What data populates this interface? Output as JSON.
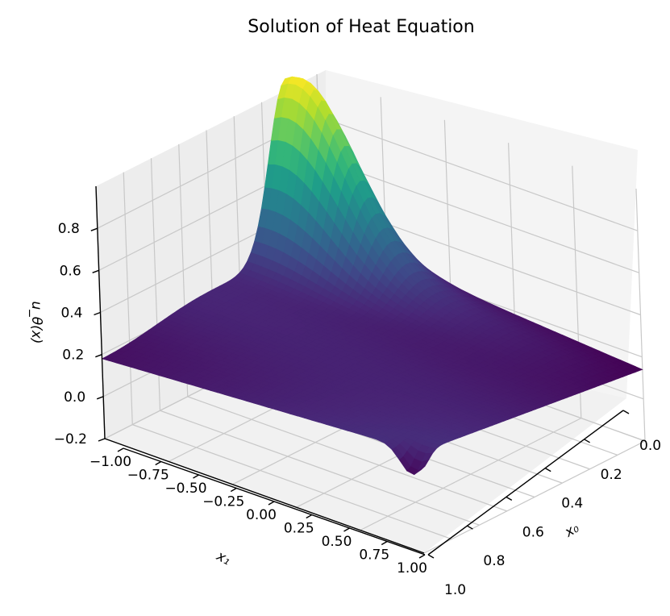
{
  "chart_data": {
    "type": "surface",
    "title": "Solution of Heat Equation",
    "xlabel": "x₀",
    "ylabel": "x₁",
    "zlabel": "u_θ(x)",
    "x_ticks": [
      "0.0",
      "0.2",
      "0.4",
      "0.6",
      "0.8",
      "1.0"
    ],
    "x_range": [
      0,
      1
    ],
    "y_ticks": [
      "−1.00",
      "−0.75",
      "−0.50",
      "−0.25",
      "0.00",
      "0.25",
      "0.50",
      "0.75",
      "1.00"
    ],
    "y_range": [
      -1,
      1
    ],
    "z_ticks": [
      "−0.2",
      "0.0",
      "0.2",
      "0.4",
      "0.6",
      "0.8"
    ],
    "z_range": [
      -0.2,
      1.0
    ],
    "colormap": "viridis",
    "grid": true
  }
}
